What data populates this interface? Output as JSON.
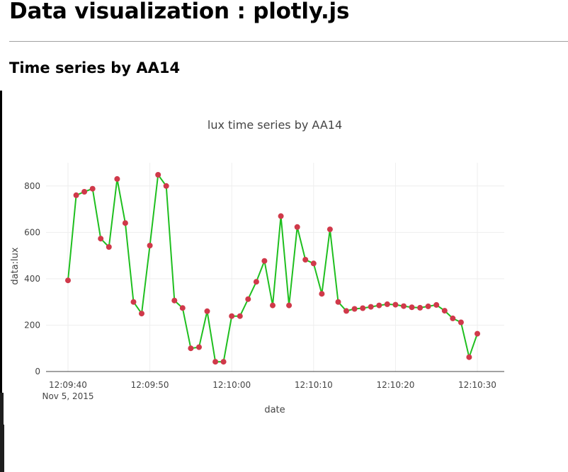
{
  "page": {
    "title": "Data visualization : plotly.js",
    "section_title": "Time series by AA14"
  },
  "chart_data": {
    "type": "line",
    "title": "lux time series by AA14",
    "xlabel": "date",
    "ylabel": "data:lux",
    "x_tick_labels": [
      "12:09:40",
      "12:09:50",
      "12:10:00",
      "12:10:10",
      "12:10:20",
      "12:10:30"
    ],
    "x_date_label": "Nov 5, 2015",
    "y_ticks": [
      0,
      200,
      400,
      600,
      800
    ],
    "ylim": [
      0,
      900
    ],
    "xlim": [
      "12:09:40",
      "12:10:30"
    ],
    "grid": true,
    "line_color": "#1fbf1f",
    "marker_color": "#d0394a",
    "series": [
      {
        "x": [
          "12:09:40",
          "12:09:41",
          "12:09:42",
          "12:09:43",
          "12:09:44",
          "12:09:45",
          "12:09:46",
          "12:09:47",
          "12:09:48",
          "12:09:49",
          "12:09:50",
          "12:09:51",
          "12:09:52",
          "12:09:53",
          "12:09:54",
          "12:09:55",
          "12:09:56",
          "12:09:57",
          "12:09:58",
          "12:09:59",
          "12:10:00",
          "12:10:01",
          "12:10:02",
          "12:10:03",
          "12:10:04",
          "12:10:05",
          "12:10:06",
          "12:10:07",
          "12:10:08",
          "12:10:09",
          "12:10:10",
          "12:10:11",
          "12:10:12",
          "12:10:13",
          "12:10:14",
          "12:10:15",
          "12:10:16",
          "12:10:17",
          "12:10:18",
          "12:10:19",
          "12:10:20",
          "12:10:21",
          "12:10:22",
          "12:10:23",
          "12:10:24",
          "12:10:25",
          "12:10:26",
          "12:10:27",
          "12:10:28",
          "12:10:29",
          "12:10:30"
        ],
        "values": [
          393,
          760,
          775,
          788,
          573,
          537,
          830,
          640,
          300,
          250,
          543,
          848,
          800,
          306,
          274,
          100,
          105,
          260,
          42,
          42,
          239,
          239,
          312,
          387,
          477,
          285,
          670,
          285,
          623,
          482,
          466,
          335,
          613,
          300,
          261,
          270,
          273,
          279,
          285,
          290,
          288,
          282,
          277,
          275,
          281,
          287,
          262,
          229,
          212,
          62,
          163
        ]
      }
    ]
  }
}
